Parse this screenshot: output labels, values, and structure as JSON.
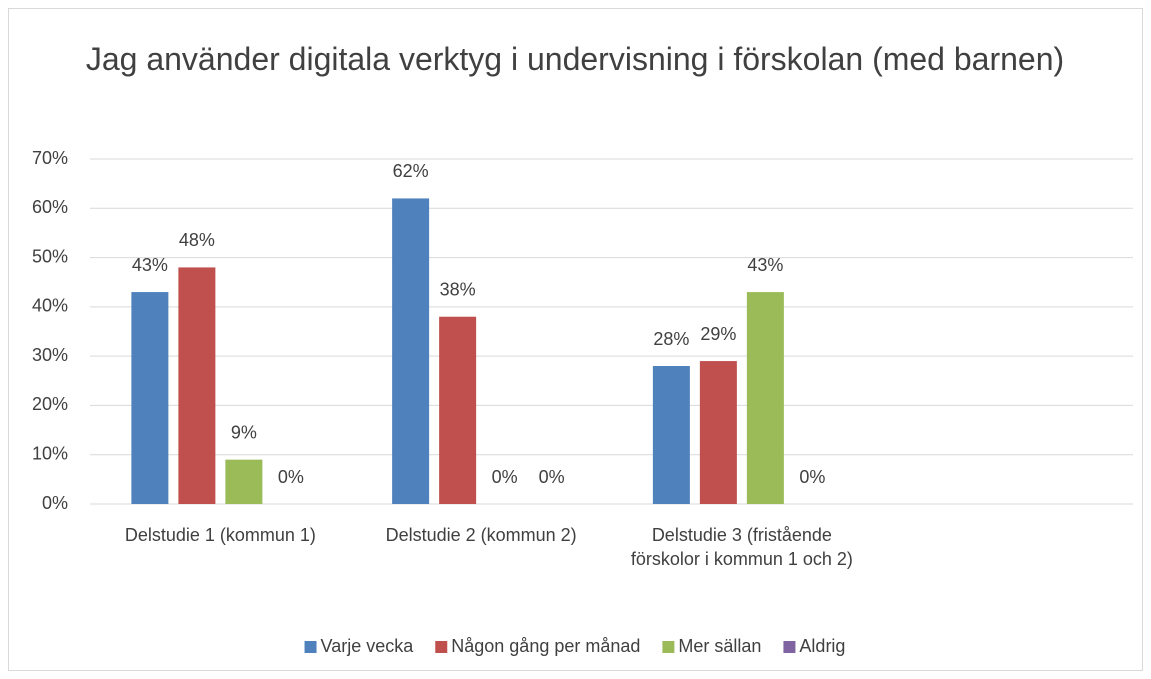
{
  "chart_data": {
    "type": "bar",
    "title": "Jag använder digitala verktyg i undervisning i förskolan (med barnen)",
    "categories": [
      "Delstudie 1 (kommun 1)",
      "Delstudie 2 (kommun 2)",
      "Delstudie 3 (fristående förskolor i kommun 1 och 2)",
      null
    ],
    "series": [
      {
        "name": "Varje vecka",
        "color": "#4f81bd",
        "values": [
          43,
          62,
          28,
          null
        ],
        "value_labels": [
          "43%",
          "62%",
          "28%",
          null
        ]
      },
      {
        "name": "Någon gång per månad",
        "color": "#c0504d",
        "values": [
          48,
          38,
          29,
          null
        ],
        "value_labels": [
          "48%",
          "38%",
          "29%",
          null
        ]
      },
      {
        "name": "Mer sällan",
        "color": "#9bbb59",
        "values": [
          9,
          0,
          43,
          null
        ],
        "value_labels": [
          "9%",
          "0%",
          "43%",
          null
        ]
      },
      {
        "name": "Aldrig",
        "color": "#8064a2",
        "values": [
          0,
          0,
          0,
          null
        ],
        "value_labels": [
          "0%",
          "0%",
          "0%",
          null
        ]
      }
    ],
    "ylim": [
      0,
      70
    ],
    "yticks": [
      {
        "value": 0,
        "label": "0%"
      },
      {
        "value": 10,
        "label": "10%"
      },
      {
        "value": 20,
        "label": "20%"
      },
      {
        "value": 30,
        "label": "30%"
      },
      {
        "value": 40,
        "label": "40%"
      },
      {
        "value": 50,
        "label": "50%"
      },
      {
        "value": 60,
        "label": "60%"
      },
      {
        "value": 70,
        "label": "70%"
      }
    ],
    "grid": true,
    "legend": "bottom"
  }
}
